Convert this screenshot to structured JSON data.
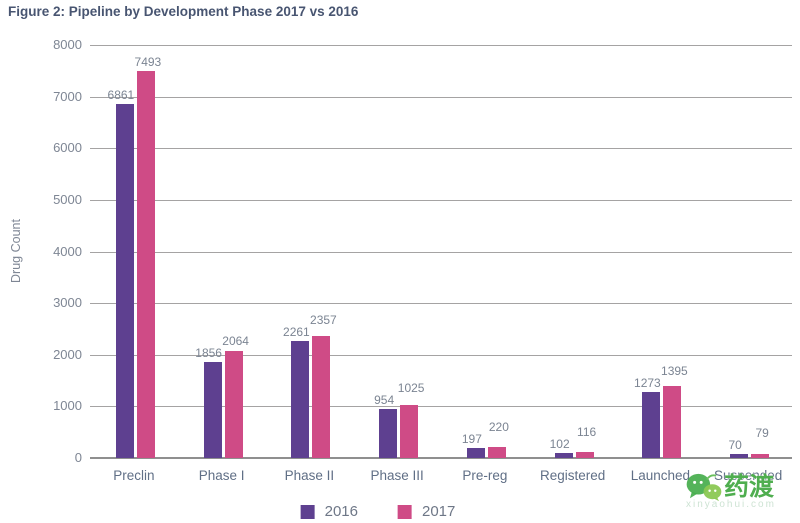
{
  "title": "Figure 2: Pipeline by Development Phase 2017 vs 2016",
  "chart_data": {
    "type": "bar",
    "title": "Figure 2: Pipeline by Development Phase 2017 vs 2016",
    "xlabel": "",
    "ylabel": "Drug Count",
    "ylim": [
      0,
      8000
    ],
    "yticks": [
      0,
      1000,
      2000,
      3000,
      4000,
      5000,
      6000,
      7000,
      8000
    ],
    "grid": true,
    "legend_position": "bottom",
    "value_labels": true,
    "categories": [
      "Preclin",
      "Phase I",
      "Phase II",
      "Phase III",
      "Pre-reg",
      "Registered",
      "Launched",
      "Suspended"
    ],
    "series": [
      {
        "name": "2016",
        "color": "#5e4090",
        "values": [
          6861,
          1856,
          2261,
          954,
          197,
          102,
          1273,
          70
        ]
      },
      {
        "name": "2017",
        "color": "#cf4b86",
        "values": [
          7493,
          2064,
          2357,
          1025,
          220,
          116,
          1395,
          79
        ]
      }
    ]
  },
  "watermark": {
    "logo": "yaodu-bubbles-logo",
    "text": "药渡",
    "subtext": "xinyaohui.com"
  },
  "colors": {
    "title_text": "#485571",
    "axis_text": "#7e8694",
    "category_text": "#606f86",
    "value_text": "#7b8492",
    "gridline": "#a5a3a3",
    "series_2016": "#5e4090",
    "series_2017": "#cf4b86",
    "watermark_green": "#4fae4f"
  }
}
